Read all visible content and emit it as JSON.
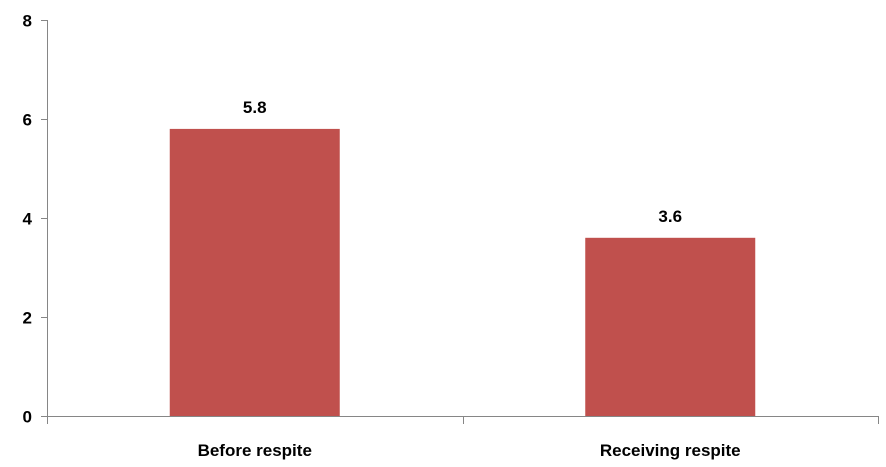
{
  "chart_data": {
    "type": "bar",
    "title": "",
    "xlabel": "",
    "ylabel": "",
    "categories": [
      "Before respite",
      "Receiving respite"
    ],
    "values": [
      5.8,
      3.6
    ],
    "data_labels": [
      "5.8",
      "3.6"
    ],
    "ylim": [
      0,
      8
    ],
    "yticks": [
      0,
      2,
      4,
      6,
      8
    ],
    "ytick_labels": [
      "0",
      "2",
      "4",
      "6",
      "8"
    ],
    "bar_color": "#C0504D",
    "axis_color": "#868686",
    "grid": false,
    "legend": "none"
  }
}
